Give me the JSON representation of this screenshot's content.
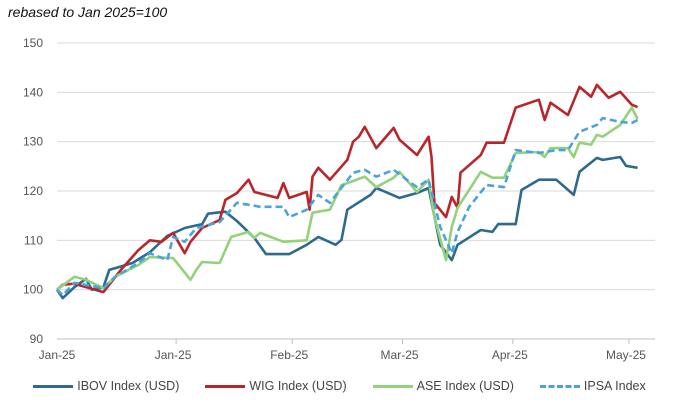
{
  "chart_data": {
    "type": "line",
    "title": "rebased to Jan 2025=100",
    "xlabel": "",
    "ylabel": "",
    "ylim": [
      90,
      150
    ],
    "yticks": [
      90,
      100,
      110,
      120,
      130,
      140,
      150
    ],
    "xlim": [
      0,
      103
    ],
    "x_unit": "trading day index",
    "xticks": [
      {
        "x": 0,
        "label": "Jan-25"
      },
      {
        "x": 20,
        "label": "Jan-25"
      },
      {
        "x": 40,
        "label": "Feb-25"
      },
      {
        "x": 59,
        "label": "Mar-25"
      },
      {
        "x": 78,
        "label": "Apr-25"
      },
      {
        "x": 98,
        "label": "May-25"
      }
    ],
    "grid": "horizontal",
    "legend_position": "bottom",
    "series": [
      {
        "name": "IBOV Index (USD)",
        "color": "#2f6a8e",
        "dash": false,
        "points": [
          [
            0,
            100
          ],
          [
            1,
            98.3
          ],
          [
            3,
            100.5
          ],
          [
            5,
            102.2
          ],
          [
            6,
            100
          ],
          [
            8,
            100.5
          ],
          [
            9,
            104
          ],
          [
            13,
            105.4
          ],
          [
            16,
            107.6
          ],
          [
            19,
            110.9
          ],
          [
            22,
            112.5
          ],
          [
            25,
            113.3
          ],
          [
            26,
            115.4
          ],
          [
            29,
            115.8
          ],
          [
            31,
            113.9
          ],
          [
            34,
            110.5
          ],
          [
            36,
            107.2
          ],
          [
            40,
            107.2
          ],
          [
            43,
            109.1
          ],
          [
            45,
            110.7
          ],
          [
            48,
            109.1
          ],
          [
            49,
            110.1
          ],
          [
            50,
            116.2
          ],
          [
            54,
            119.2
          ],
          [
            55,
            120.6
          ],
          [
            59,
            118.6
          ],
          [
            62,
            119.6
          ],
          [
            64,
            120.6
          ],
          [
            66,
            109.1
          ],
          [
            68,
            106
          ],
          [
            69,
            109.1
          ],
          [
            73,
            112.1
          ],
          [
            75,
            111.7
          ],
          [
            76,
            113.3
          ],
          [
            79,
            113.3
          ],
          [
            80,
            120.2
          ],
          [
            83,
            122.3
          ],
          [
            86,
            122.3
          ],
          [
            89,
            119.2
          ],
          [
            90,
            123.9
          ],
          [
            93,
            126.7
          ],
          [
            94,
            126.3
          ],
          [
            97,
            126.9
          ],
          [
            98,
            125.1
          ],
          [
            100,
            124.7
          ]
        ]
      },
      {
        "name": "WIG Index (USD)",
        "color": "#b8262b",
        "dash": false,
        "points": [
          [
            0,
            100
          ],
          [
            1,
            101
          ],
          [
            3,
            101.2
          ],
          [
            8,
            99.5
          ],
          [
            11,
            104
          ],
          [
            14,
            108
          ],
          [
            16,
            110
          ],
          [
            18,
            109.7
          ],
          [
            20,
            111.5
          ],
          [
            22,
            107.4
          ],
          [
            23,
            109.7
          ],
          [
            25,
            112.5
          ],
          [
            28,
            114.1
          ],
          [
            29,
            118.2
          ],
          [
            31,
            119.6
          ],
          [
            33,
            122.3
          ],
          [
            34,
            119.8
          ],
          [
            38,
            118.6
          ],
          [
            39,
            121.6
          ],
          [
            40,
            118.6
          ],
          [
            43,
            119.8
          ],
          [
            43.5,
            116.2
          ],
          [
            44,
            122.9
          ],
          [
            45,
            124.7
          ],
          [
            47,
            122.3
          ],
          [
            50,
            126.3
          ],
          [
            51,
            130
          ],
          [
            52,
            131
          ],
          [
            53,
            133
          ],
          [
            55,
            128.7
          ],
          [
            58,
            132.8
          ],
          [
            59,
            130.4
          ],
          [
            62,
            127.3
          ],
          [
            64,
            131
          ],
          [
            64.5,
            126.9
          ],
          [
            65,
            117.6
          ],
          [
            67,
            114.7
          ],
          [
            68,
            118.8
          ],
          [
            69,
            116.6
          ],
          [
            69.5,
            123.7
          ],
          [
            73,
            127.3
          ],
          [
            74,
            129.8
          ],
          [
            77,
            129.8
          ],
          [
            79,
            136.9
          ],
          [
            83,
            138.5
          ],
          [
            84,
            134.4
          ],
          [
            85,
            137.9
          ],
          [
            88,
            135.4
          ],
          [
            90,
            141.1
          ],
          [
            92,
            139.1
          ],
          [
            93,
            141.5
          ],
          [
            95,
            138.9
          ],
          [
            97,
            140.1
          ],
          [
            99,
            137.5
          ],
          [
            100,
            137
          ]
        ]
      },
      {
        "name": "ASE Index (USD)",
        "color": "#92d27a",
        "dash": false,
        "points": [
          [
            0,
            100
          ],
          [
            3,
            102.6
          ],
          [
            5,
            102
          ],
          [
            8,
            100.3
          ],
          [
            10,
            102.6
          ],
          [
            14,
            105
          ],
          [
            16,
            106.6
          ],
          [
            20,
            106.4
          ],
          [
            23,
            102
          ],
          [
            24,
            104
          ],
          [
            25,
            105.6
          ],
          [
            28,
            105.4
          ],
          [
            30,
            110.7
          ],
          [
            33,
            111.7
          ],
          [
            34,
            110.5
          ],
          [
            35,
            111.5
          ],
          [
            39,
            109.7
          ],
          [
            43,
            110
          ],
          [
            44,
            115.6
          ],
          [
            47,
            116.2
          ],
          [
            49,
            121.2
          ],
          [
            50,
            121.6
          ],
          [
            53,
            122.9
          ],
          [
            55,
            120.8
          ],
          [
            58,
            122.7
          ],
          [
            59,
            123.9
          ],
          [
            62,
            119.8
          ],
          [
            64,
            122.3
          ],
          [
            65,
            114.7
          ],
          [
            67,
            106
          ],
          [
            68,
            112.7
          ],
          [
            69,
            116.6
          ],
          [
            73,
            123.9
          ],
          [
            75,
            122.7
          ],
          [
            77,
            122.7
          ],
          [
            79,
            127.7
          ],
          [
            83,
            127.9
          ],
          [
            84,
            126.9
          ],
          [
            85,
            128.7
          ],
          [
            88,
            128.7
          ],
          [
            89,
            126.9
          ],
          [
            90,
            129.8
          ],
          [
            92,
            129.4
          ],
          [
            93,
            131.4
          ],
          [
            94,
            131
          ],
          [
            97,
            133.4
          ],
          [
            99,
            136.9
          ],
          [
            100,
            134.6
          ]
        ]
      },
      {
        "name": "IPSA Index",
        "color": "#4ba3dc",
        "dash": true,
        "points": [
          [
            0,
            100
          ],
          [
            1,
            98.9
          ],
          [
            3,
            101.4
          ],
          [
            8,
            100.3
          ],
          [
            10,
            102.6
          ],
          [
            14,
            105.4
          ],
          [
            16,
            107.4
          ],
          [
            19,
            106
          ],
          [
            20,
            110.7
          ],
          [
            22,
            109.7
          ],
          [
            24,
            112.5
          ],
          [
            28,
            113.7
          ],
          [
            31,
            117.6
          ],
          [
            35,
            116.8
          ],
          [
            39,
            116.8
          ],
          [
            40,
            114.7
          ],
          [
            43,
            116.2
          ],
          [
            45,
            119.2
          ],
          [
            47,
            117.6
          ],
          [
            51,
            123.7
          ],
          [
            53,
            124.3
          ],
          [
            55,
            122.9
          ],
          [
            58,
            124.3
          ],
          [
            61,
            121.6
          ],
          [
            62,
            120.8
          ],
          [
            64,
            122.3
          ],
          [
            66,
            112.7
          ],
          [
            68,
            107.4
          ],
          [
            69,
            111.7
          ],
          [
            71,
            116.8
          ],
          [
            74,
            121.2
          ],
          [
            77,
            120.8
          ],
          [
            79,
            128.3
          ],
          [
            83,
            127.7
          ],
          [
            86,
            128.3
          ],
          [
            88,
            128.3
          ],
          [
            90,
            132
          ],
          [
            93,
            133.4
          ],
          [
            94,
            134.8
          ],
          [
            97,
            134
          ],
          [
            99,
            133.8
          ],
          [
            100,
            134.4
          ]
        ]
      }
    ]
  }
}
